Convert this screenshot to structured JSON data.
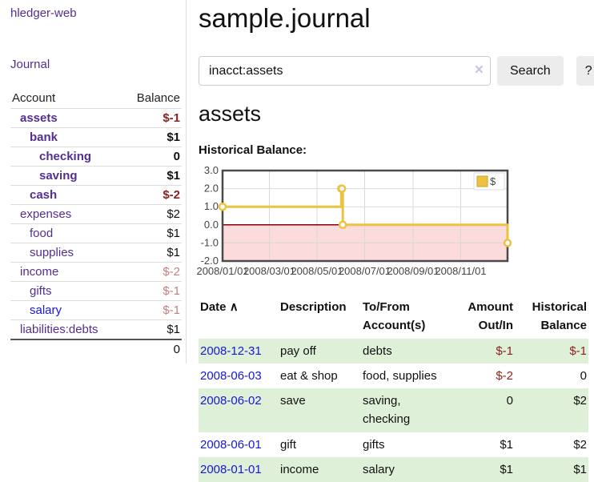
{
  "colors": {
    "link_purple": "#552e91",
    "link_blue": "#1717d6",
    "negative_red": "#8f1f1f",
    "muted_negative": "#c08181",
    "row_green": "#dff0d8",
    "button_gray": "#ececec",
    "chart_line_yellow": "#edc240",
    "chart_marker_fill": "#ffffff",
    "chart_negative_pink": "#fbdbdb",
    "chart_zero_line": "#8b0000",
    "chart_border": "#4a4a4a",
    "chart_grid": "#d9d9d9",
    "legend_square_border": "#c9a42e"
  },
  "sidebar": {
    "app_title": "hledger-web",
    "journal_link": "Journal",
    "accounts_table": {
      "headers": [
        "Account",
        "Balance"
      ],
      "rows": [
        {
          "name": "assets",
          "balance": "$-1",
          "depth": 1,
          "bold": true,
          "balance_style": "neg"
        },
        {
          "name": "bank",
          "balance": "$1",
          "depth": 2,
          "bold": true,
          "balance_style": ""
        },
        {
          "name": "checking",
          "balance": "0",
          "depth": 3,
          "bold": true,
          "balance_style": ""
        },
        {
          "name": "saving",
          "balance": "$1",
          "depth": 3,
          "bold": true,
          "balance_style": ""
        },
        {
          "name": "cash",
          "balance": "$-2",
          "depth": 2,
          "bold": true,
          "balance_style": "neg"
        },
        {
          "name": "expenses",
          "balance": "$2",
          "depth": 1,
          "bold": false,
          "balance_style": ""
        },
        {
          "name": "food",
          "balance": "$1",
          "depth": 2,
          "bold": false,
          "balance_style": ""
        },
        {
          "name": "supplies",
          "balance": "$1",
          "depth": 2,
          "bold": false,
          "balance_style": ""
        },
        {
          "name": "income",
          "balance": "$-2",
          "depth": 1,
          "bold": false,
          "balance_style": "mneg"
        },
        {
          "name": "gifts",
          "balance": "$-1",
          "depth": 2,
          "bold": false,
          "balance_style": "mneg"
        },
        {
          "name": "salary",
          "balance": "$-1",
          "depth": 2,
          "bold": false,
          "balance_style": "mneg",
          "link": "blue"
        },
        {
          "name": "liabilities:debts",
          "balance": "$1",
          "depth": 1,
          "bold": false,
          "balance_style": ""
        }
      ],
      "total": "0"
    }
  },
  "main": {
    "title": "sample.journal",
    "search": {
      "value": "inacct:assets",
      "clear_icon": "×",
      "button_label": "Search",
      "help_label": "?"
    },
    "account_heading": "assets"
  },
  "chart_data": {
    "type": "line",
    "title": "Historical Balance:",
    "step": true,
    "series": [
      {
        "name": "$",
        "points": [
          {
            "x": "2008-01-01",
            "y": 1
          },
          {
            "x": "2008-06-01",
            "y": 2
          },
          {
            "x": "2008-06-02",
            "y": 2
          },
          {
            "x": "2008-06-03",
            "y": 0
          },
          {
            "x": "2008-12-31",
            "y": -1
          }
        ]
      }
    ],
    "x_domain": [
      "2008-01-01",
      "2008-12-31"
    ],
    "x_ticks": [
      "2008/01/01",
      "2008/03/01",
      "2008/05/01",
      "2008/07/01",
      "2008/09/01",
      "2008/11/01"
    ],
    "y_ticks": [
      3.0,
      2.0,
      1.0,
      0.0,
      -1.0,
      -2.0
    ],
    "ylim": [
      -2,
      3
    ],
    "grid": true,
    "negative_region": {
      "from": -2,
      "to": 0
    },
    "legend": {
      "label": "$",
      "position": "top-right"
    }
  },
  "register": {
    "date_header": "Date",
    "sort_icon": "∧",
    "headers": [
      "Date",
      "Description",
      "To/From Account(s)",
      "Amount Out/In",
      "Historical Balance"
    ],
    "rows": [
      {
        "date": "2008-12-31",
        "description": "pay off",
        "accounts": "debts",
        "amount": "$-1",
        "balance": "$-1"
      },
      {
        "date": "2008-06-03",
        "description": "eat & shop",
        "accounts": "food, supplies",
        "amount": "$-2",
        "balance": "0"
      },
      {
        "date": "2008-06-02",
        "description": "save",
        "accounts": "saving, checking",
        "amount": "0",
        "balance": "$2"
      },
      {
        "date": "2008-06-01",
        "description": "gift",
        "accounts": "gifts",
        "amount": "$1",
        "balance": "$2"
      },
      {
        "date": "2008-01-01",
        "description": "income",
        "accounts": "salary",
        "amount": "$1",
        "balance": "$1"
      }
    ]
  }
}
